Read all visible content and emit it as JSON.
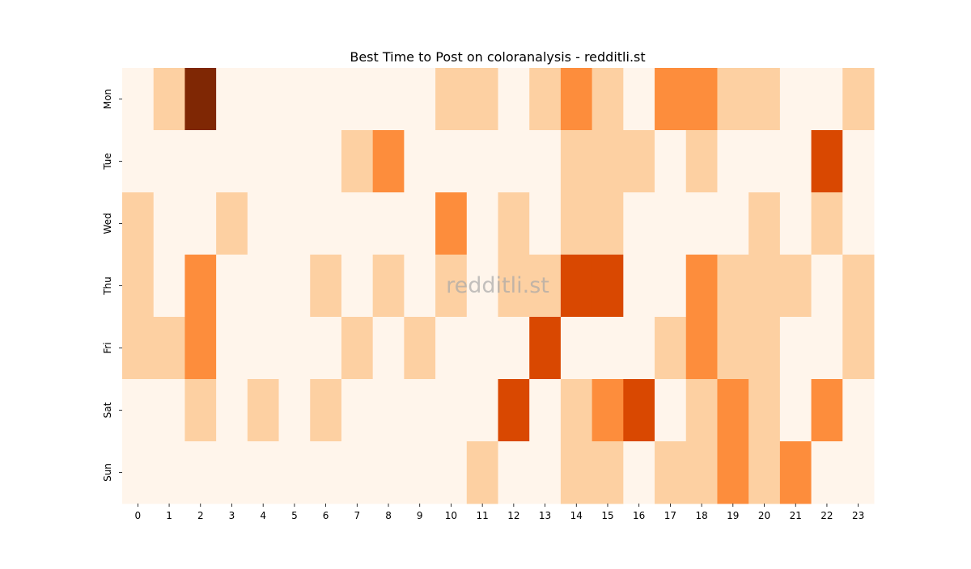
{
  "chart_data": {
    "type": "heatmap",
    "title": "Best Time to Post on coloranalysis - redditli.st",
    "xlabel": "",
    "ylabel": "",
    "x_categories": [
      "0",
      "1",
      "2",
      "3",
      "4",
      "5",
      "6",
      "7",
      "8",
      "9",
      "10",
      "11",
      "12",
      "13",
      "14",
      "15",
      "16",
      "17",
      "18",
      "19",
      "20",
      "21",
      "22",
      "23"
    ],
    "y_categories": [
      "Mon",
      "Tue",
      "Wed",
      "Thu",
      "Fri",
      "Sat",
      "Sun"
    ],
    "values": [
      [
        0,
        1,
        4,
        0,
        0,
        0,
        0,
        0,
        0,
        0,
        1,
        1,
        0,
        1,
        2,
        1,
        0,
        2,
        2,
        1,
        1,
        0,
        0,
        1
      ],
      [
        0,
        0,
        0,
        0,
        0,
        0,
        0,
        1,
        2,
        0,
        0,
        0,
        0,
        0,
        1,
        1,
        1,
        0,
        1,
        0,
        0,
        0,
        3,
        0
      ],
      [
        1,
        0,
        0,
        1,
        0,
        0,
        0,
        0,
        0,
        0,
        2,
        0,
        1,
        0,
        1,
        1,
        0,
        0,
        0,
        0,
        1,
        0,
        1,
        0
      ],
      [
        1,
        0,
        2,
        0,
        0,
        0,
        1,
        0,
        1,
        0,
        1,
        0,
        1,
        1,
        3,
        3,
        0,
        0,
        2,
        1,
        1,
        1,
        0,
        1
      ],
      [
        1,
        1,
        2,
        0,
        0,
        0,
        0,
        1,
        0,
        1,
        0,
        0,
        0,
        3,
        0,
        0,
        0,
        1,
        2,
        1,
        1,
        0,
        0,
        1
      ],
      [
        0,
        0,
        1,
        0,
        1,
        0,
        1,
        0,
        0,
        0,
        0,
        0,
        3,
        0,
        1,
        2,
        3,
        0,
        1,
        2,
        1,
        0,
        2,
        0
      ],
      [
        0,
        0,
        0,
        0,
        0,
        0,
        0,
        0,
        0,
        0,
        0,
        1,
        0,
        0,
        1,
        1,
        0,
        1,
        1,
        2,
        1,
        2,
        0,
        0
      ]
    ],
    "color_scale": [
      "#fff5eb",
      "#fdd0a2",
      "#fd8d3c",
      "#d94801",
      "#7f2704"
    ],
    "colorbar": false,
    "grid": false
  },
  "watermark": "redditli.st"
}
